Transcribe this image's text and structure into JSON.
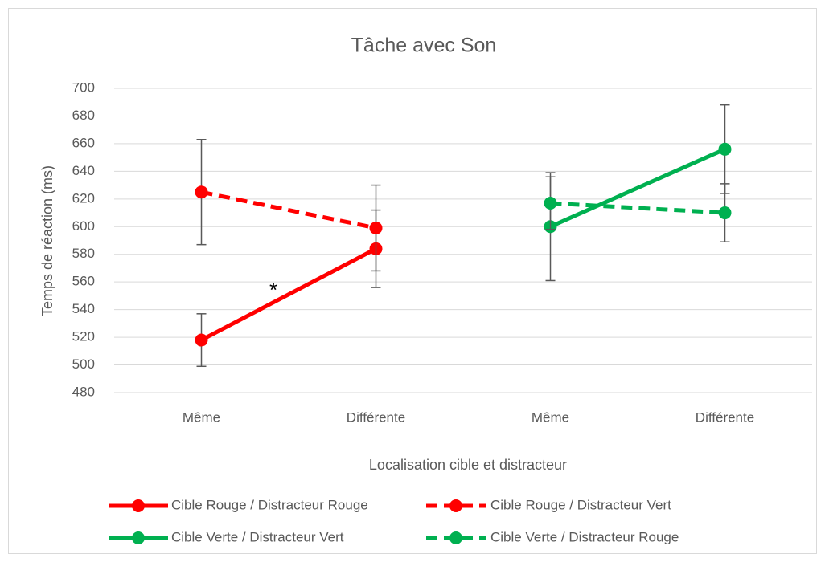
{
  "chart_data": {
    "type": "line",
    "title": "Tâche avec Son",
    "xlabel": "Localisation cible et distracteur",
    "ylabel": "Temps de réaction (ms)",
    "categories": [
      "Même",
      "Différente",
      "Même",
      "Différente"
    ],
    "series": [
      {
        "name": "Cible Rouge / Distracteur Rouge",
        "color": "#ff0000",
        "dashed": false,
        "values": [
          518,
          584,
          null,
          null
        ],
        "errors": [
          19,
          28,
          null,
          null
        ]
      },
      {
        "name": "Cible Rouge / Distracteur Vert",
        "color": "#ff0000",
        "dashed": true,
        "values": [
          625,
          599,
          null,
          null
        ],
        "errors": [
          38,
          31,
          null,
          null
        ]
      },
      {
        "name": "Cible Verte / Distracteur Vert",
        "color": "#00b050",
        "dashed": false,
        "values": [
          null,
          null,
          600,
          656
        ],
        "errors": [
          null,
          null,
          39,
          32
        ]
      },
      {
        "name": "Cible Verte / Distracteur Rouge",
        "color": "#00b050",
        "dashed": true,
        "values": [
          null,
          null,
          617,
          610
        ],
        "errors": [
          null,
          null,
          19,
          21
        ]
      }
    ],
    "annotations": [
      "*"
    ],
    "ylim": [
      480,
      700
    ],
    "yticks": [
      480,
      500,
      520,
      540,
      560,
      580,
      600,
      620,
      640,
      660,
      680,
      700
    ],
    "grid": true
  }
}
